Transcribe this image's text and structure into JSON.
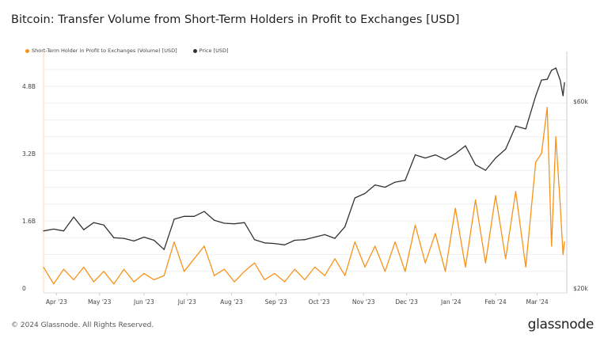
{
  "title": "Bitcoin: Transfer Volume from Short-Term Holders in Profit to Exchanges [USD]",
  "footer": "© 2024 Glassnode. All Rights Reserved.",
  "logo": "glassnode",
  "colors": {
    "volume": "#f7931a",
    "price": "#333333"
  },
  "chart_data": {
    "type": "line",
    "title": "Bitcoin: Transfer Volume from Short-Term Holders in Profit to Exchanges [USD]",
    "legend": {
      "placement": "top-left"
    },
    "grid": true,
    "x_ticks": [
      "Apr '23",
      "May '23",
      "Jun '23",
      "Jul '23",
      "Aug '23",
      "Sep '23",
      "Oct '23",
      "Nov '23",
      "Dec '23",
      "Jan '24",
      "Feb '24",
      "Mar '24"
    ],
    "x_tick_dates": [
      "2023-04-01",
      "2023-05-01",
      "2023-06-01",
      "2023-07-01",
      "2023-08-01",
      "2023-09-01",
      "2023-10-01",
      "2023-11-01",
      "2023-12-01",
      "2024-01-01",
      "2024-02-01",
      "2024-03-01"
    ],
    "xlim": [
      "2023-03-23",
      "2024-03-20"
    ],
    "y_left": {
      "ticks": [
        0,
        1.6,
        3.2,
        4.8
      ],
      "tick_labels": [
        "0",
        "1.6B",
        "3.2B",
        "4.8B"
      ],
      "unit": "USD billions",
      "lim": [
        0,
        5.5
      ]
    },
    "y_right": {
      "ticks": [
        20,
        60
      ],
      "tick_labels": [
        "$20k",
        "$60k"
      ],
      "unit": "USD thousands",
      "scale": "log",
      "lim": [
        20,
        80
      ]
    },
    "x": [
      "2023-03-23",
      "2023-03-30",
      "2023-04-06",
      "2023-04-13",
      "2023-04-20",
      "2023-04-27",
      "2023-05-04",
      "2023-05-11",
      "2023-05-18",
      "2023-05-25",
      "2023-06-01",
      "2023-06-08",
      "2023-06-15",
      "2023-06-22",
      "2023-06-29",
      "2023-07-06",
      "2023-07-13",
      "2023-07-20",
      "2023-07-27",
      "2023-08-03",
      "2023-08-10",
      "2023-08-17",
      "2023-08-24",
      "2023-08-31",
      "2023-09-07",
      "2023-09-14",
      "2023-09-21",
      "2023-09-28",
      "2023-10-05",
      "2023-10-12",
      "2023-10-19",
      "2023-10-26",
      "2023-11-02",
      "2023-11-09",
      "2023-11-16",
      "2023-11-23",
      "2023-11-30",
      "2023-12-07",
      "2023-12-14",
      "2023-12-21",
      "2023-12-28",
      "2024-01-04",
      "2024-01-11",
      "2024-01-18",
      "2024-01-25",
      "2024-02-01",
      "2024-02-08",
      "2024-02-15",
      "2024-02-22",
      "2024-02-29",
      "2024-03-04",
      "2024-03-08",
      "2024-03-11",
      "2024-03-14",
      "2024-03-17",
      "2024-03-19",
      "2024-03-20"
    ],
    "series": [
      {
        "name": "Short-Term Holder in Profit to Exchanges (Volume) [USD]",
        "axis": "left",
        "values": [
          0.5,
          0.1,
          0.45,
          0.2,
          0.5,
          0.15,
          0.4,
          0.1,
          0.45,
          0.15,
          0.35,
          0.2,
          0.3,
          1.1,
          0.4,
          0.7,
          1.0,
          0.3,
          0.45,
          0.15,
          0.4,
          0.6,
          0.2,
          0.35,
          0.15,
          0.45,
          0.2,
          0.5,
          0.3,
          0.7,
          0.3,
          1.1,
          0.5,
          1.0,
          0.4,
          1.1,
          0.4,
          1.5,
          0.6,
          1.3,
          0.4,
          1.9,
          0.5,
          2.1,
          0.6,
          2.2,
          0.7,
          2.3,
          0.5,
          3.0,
          3.2,
          4.3,
          1.0,
          3.6,
          2.0,
          0.8,
          1.1
        ]
      },
      {
        "name": "Price [USD]",
        "axis": "right",
        "values": [
          28,
          28.3,
          28,
          30.4,
          28.2,
          29.4,
          29,
          26.9,
          26.8,
          26.4,
          27,
          26.5,
          25.1,
          30,
          30.5,
          30.5,
          31.4,
          29.8,
          29.3,
          29.2,
          29.4,
          26.6,
          26.1,
          26,
          25.8,
          26.5,
          26.6,
          27,
          27.4,
          26.8,
          28.7,
          34,
          34.9,
          36.7,
          36.2,
          37.3,
          37.7,
          43.8,
          43,
          43.8,
          42.6,
          44.1,
          46.2,
          41.3,
          40,
          43,
          45.3,
          51.9,
          51,
          62,
          68,
          68.3,
          72,
          73,
          68,
          62,
          67
        ]
      }
    ]
  }
}
